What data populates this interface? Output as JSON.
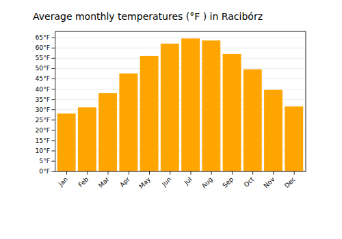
{
  "chart_data": {
    "type": "bar",
    "title": "Average monthly temperatures (°F ) in Racibórz",
    "categories": [
      "Jan",
      "Feb",
      "Mar",
      "Apr",
      "May",
      "Jun",
      "Jul",
      "Aug",
      "Sep",
      "Oct",
      "Nov",
      "Dec"
    ],
    "values": [
      28,
      31,
      38,
      47.5,
      56,
      62,
      64.5,
      63.5,
      57,
      49.5,
      39.5,
      31.5
    ],
    "color": "#FFA500",
    "ylim": [
      0,
      68
    ],
    "yticks": [
      {
        "value": 0,
        "label": "0°F"
      },
      {
        "value": 5,
        "label": "5°F"
      },
      {
        "value": 10,
        "label": "10°F"
      },
      {
        "value": 15,
        "label": "15°F"
      },
      {
        "value": 20,
        "label": "20°F"
      },
      {
        "value": 25,
        "label": "25°F"
      },
      {
        "value": 30,
        "label": "30°F"
      },
      {
        "value": 35,
        "label": "35°F"
      },
      {
        "value": 40,
        "label": "40°F"
      },
      {
        "value": 45,
        "label": "45°F"
      },
      {
        "value": 50,
        "label": "50°F"
      },
      {
        "value": 55,
        "label": "55°F"
      },
      {
        "value": 60,
        "label": "60°F"
      },
      {
        "value": 65,
        "label": "65°F"
      }
    ],
    "grid": true
  }
}
